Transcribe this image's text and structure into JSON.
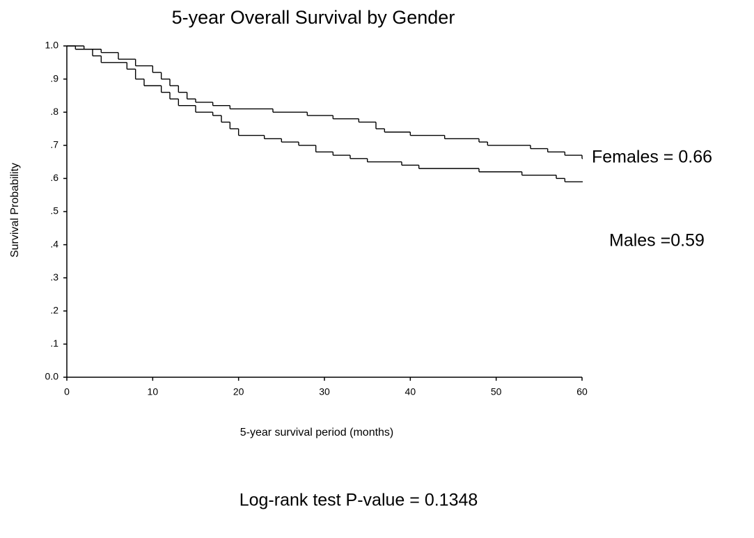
{
  "chart_data": {
    "type": "step",
    "title": "5-year Overall Survival by Gender",
    "x_label": "5-year survival period (months)",
    "y_label": "Survival Probability",
    "annotations": [
      "Females = 0.66",
      "Males =0.59",
      "Log-rank test P-value = 0.1348"
    ],
    "xlim": [
      0,
      60
    ],
    "ylim": [
      0,
      1
    ],
    "xticks": [
      0,
      10,
      20,
      30,
      40,
      50,
      60
    ],
    "yticks": [
      {
        "value": 0,
        "label": "0.0"
      },
      {
        "value": 0.1,
        "label": ".1"
      },
      {
        "value": 0.2,
        "label": ".2"
      },
      {
        "value": 0.3,
        "label": ".3"
      },
      {
        "value": 0.4,
        "label": ".4"
      },
      {
        "value": 0.5,
        "label": ".5"
      },
      {
        "value": 0.6,
        "label": ".6"
      },
      {
        "value": 0.7,
        "label": ".7"
      },
      {
        "value": 0.8,
        "label": ".8"
      },
      {
        "value": 0.9,
        "label": ".9"
      },
      {
        "value": 1,
        "label": "1.0"
      }
    ],
    "grid": false,
    "series": [
      {
        "name": "Females",
        "color": "#000000",
        "x": [
          0,
          2,
          4,
          6,
          8,
          10,
          11,
          12,
          13,
          14,
          15,
          17,
          19,
          24,
          28,
          31,
          34,
          36,
          37,
          40,
          44,
          48,
          49,
          54,
          56,
          58,
          60
        ],
        "values": [
          1.0,
          0.99,
          0.98,
          0.96,
          0.94,
          0.92,
          0.9,
          0.88,
          0.86,
          0.84,
          0.83,
          0.82,
          0.81,
          0.8,
          0.79,
          0.78,
          0.77,
          0.75,
          0.74,
          0.73,
          0.72,
          0.71,
          0.7,
          0.69,
          0.68,
          0.67,
          0.66
        ]
      },
      {
        "name": "Males",
        "color": "#000000",
        "x": [
          0,
          1,
          3,
          4,
          7,
          8,
          9,
          11,
          12,
          13,
          15,
          17,
          18,
          19,
          20,
          23,
          25,
          27,
          29,
          31,
          33,
          35,
          39,
          41,
          48,
          53,
          57,
          58,
          60
        ],
        "values": [
          1.0,
          0.99,
          0.97,
          0.95,
          0.93,
          0.9,
          0.88,
          0.86,
          0.84,
          0.82,
          0.8,
          0.79,
          0.77,
          0.75,
          0.73,
          0.72,
          0.71,
          0.7,
          0.68,
          0.67,
          0.66,
          0.65,
          0.64,
          0.63,
          0.62,
          0.61,
          0.6,
          0.59,
          0.59
        ]
      }
    ]
  }
}
